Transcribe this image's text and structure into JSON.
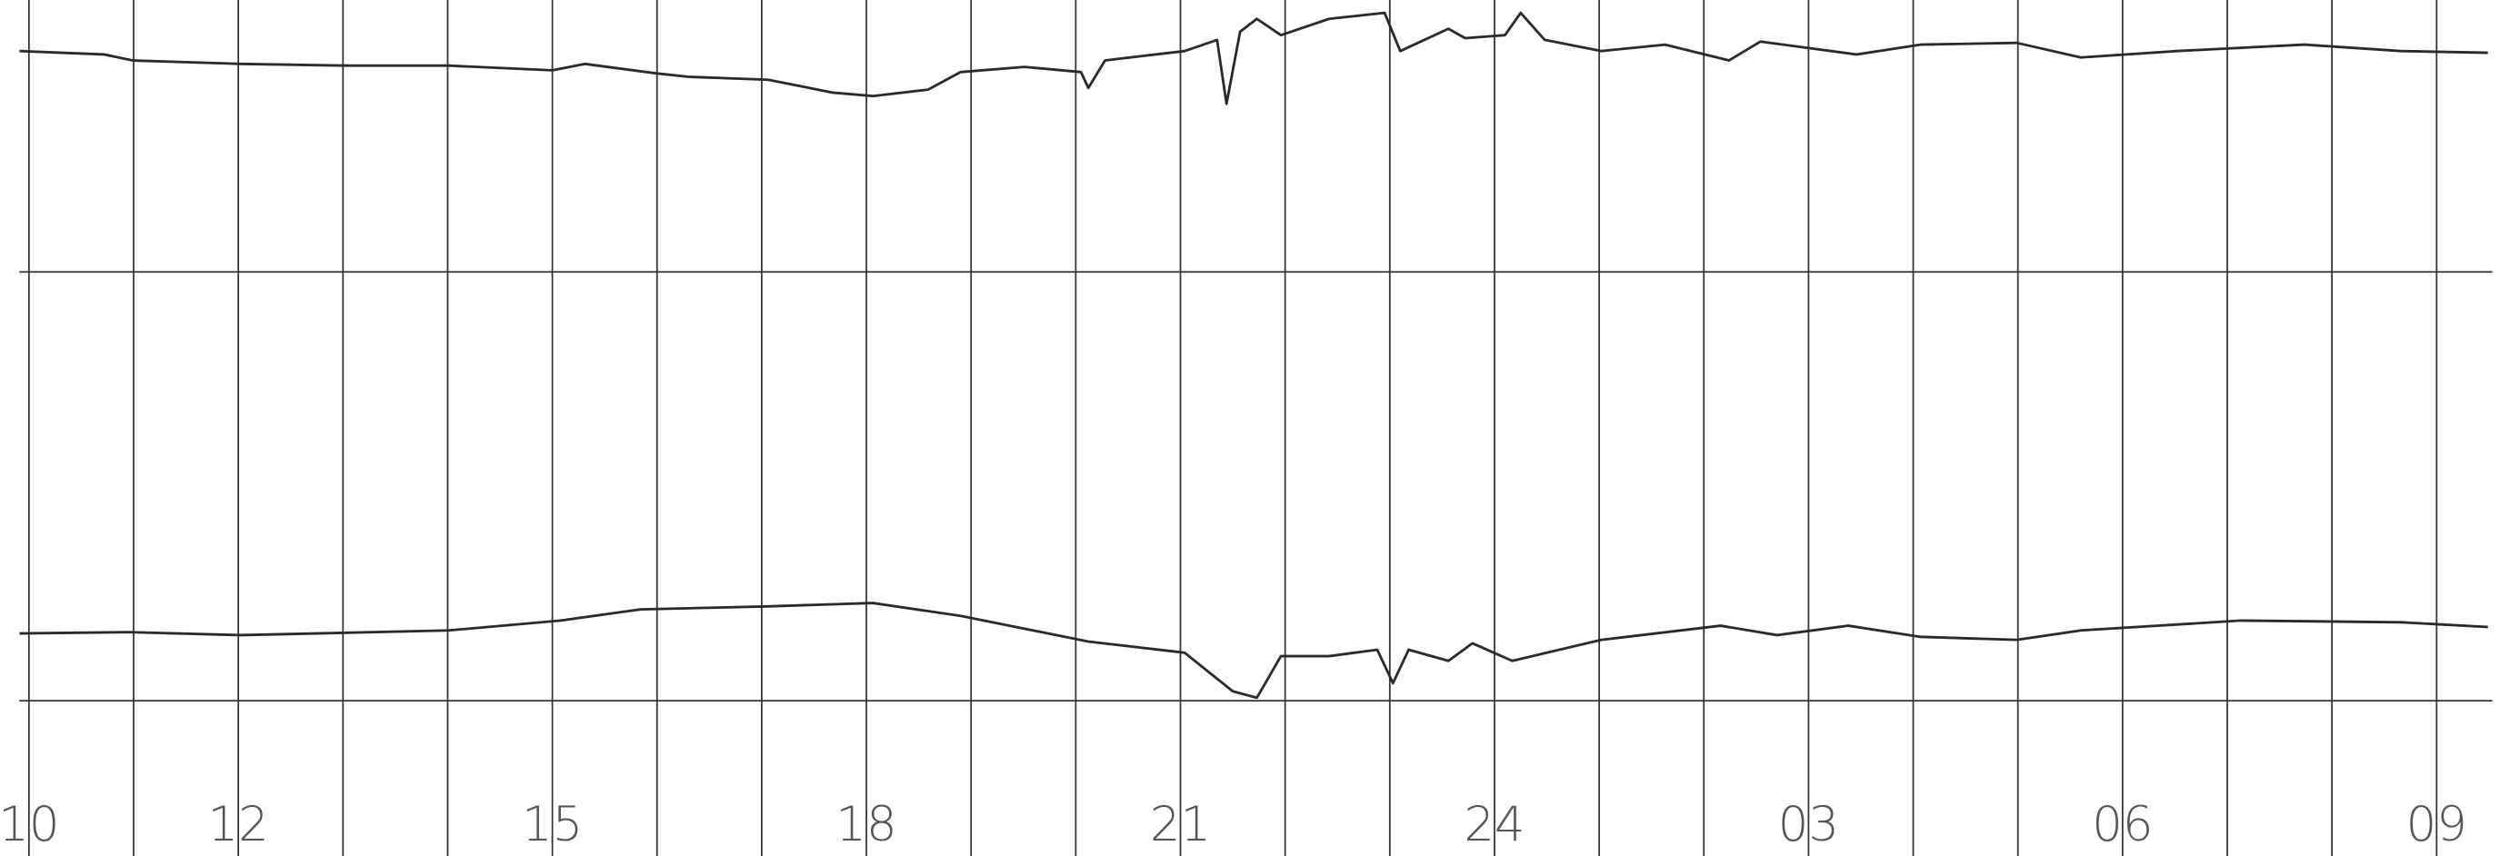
{
  "chart_data": {
    "type": "line",
    "xlim": [
      9.9,
      33.5
    ],
    "ylim": [
      -0.362,
      1.634
    ],
    "xticks": [
      10,
      12,
      15,
      18,
      21,
      24,
      {
        "value": 27,
        "label": "03"
      },
      {
        "value": 30,
        "label": "06"
      },
      {
        "value": 33,
        "label": "09"
      }
    ],
    "xgrid": [
      10,
      11,
      12,
      13,
      14,
      15,
      16,
      17,
      18,
      19,
      20,
      21,
      22,
      23,
      24,
      25,
      26,
      27,
      28,
      29,
      30,
      31,
      32,
      33
    ],
    "yticks": [
      0,
      1
    ],
    "grid": true,
    "series": [
      {
        "color": "#2a2a2a",
        "x": [
          9.91,
          10.72,
          10.99,
          12.02,
          13.01,
          14.01,
          15.0,
          15.31,
          15.99,
          16.3,
          17.06,
          17.68,
          18.06,
          18.59,
          18.9,
          19.51,
          20.05,
          20.12,
          20.28,
          21.04,
          21.35,
          21.44,
          21.57,
          21.73,
          21.96,
          22.42,
          22.95,
          23.1,
          23.56,
          23.72,
          24.1,
          24.25,
          24.48,
          25.02,
          25.63,
          26.24,
          26.54,
          27.46,
          28.07,
          28.99,
          29.6,
          30.52,
          31.74,
          32.66,
          33.49
        ],
        "values": [
          1.515,
          1.507,
          1.493,
          1.485,
          1.481,
          1.481,
          1.47,
          1.485,
          1.463,
          1.455,
          1.448,
          1.418,
          1.41,
          1.425,
          1.466,
          1.478,
          1.466,
          1.429,
          1.493,
          1.515,
          1.541,
          1.392,
          1.56,
          1.59,
          1.552,
          1.59,
          1.604,
          1.515,
          1.567,
          1.545,
          1.552,
          1.604,
          1.541,
          1.515,
          1.53,
          1.493,
          1.537,
          1.507,
          1.53,
          1.534,
          1.5,
          1.515,
          1.53,
          1.515,
          1.511
        ]
      },
      {
        "color": "#2a2a2a",
        "x": [
          9.91,
          10.95,
          12.02,
          14.01,
          15.08,
          15.84,
          17.06,
          18.06,
          18.9,
          19.51,
          20.12,
          21.04,
          21.5,
          21.73,
          21.96,
          22.42,
          22.88,
          23.03,
          23.18,
          23.56,
          23.79,
          24.17,
          25.02,
          26.16,
          26.7,
          27.38,
          28.07,
          28.99,
          29.6,
          31.13,
          32.66,
          33.49
        ],
        "values": [
          0.157,
          0.16,
          0.153,
          0.164,
          0.187,
          0.213,
          0.22,
          0.228,
          0.198,
          0.168,
          0.138,
          0.112,
          0.022,
          0.007,
          0.104,
          0.104,
          0.119,
          0.041,
          0.119,
          0.093,
          0.134,
          0.093,
          0.142,
          0.175,
          0.153,
          0.175,
          0.149,
          0.142,
          0.164,
          0.187,
          0.183,
          0.172
        ]
      }
    ]
  }
}
